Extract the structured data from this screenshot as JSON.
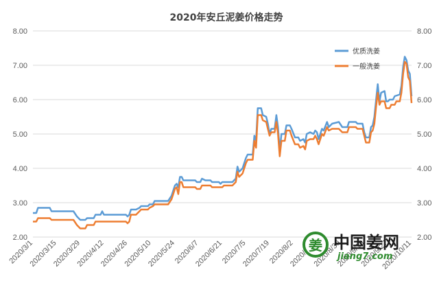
{
  "chart_data": {
    "type": "line",
    "title": "2020年安丘泥姜价格走势",
    "ylim": [
      2.0,
      8.0
    ],
    "yticks": [
      "2.00",
      "3.00",
      "4.00",
      "5.00",
      "6.00",
      "7.00",
      "8.00"
    ],
    "yticks_right": [
      "2.00",
      "3.00",
      "4.00",
      "5.00",
      "6.00",
      "7.00",
      "8.00"
    ],
    "x_tick_labels": [
      "2020/3/1",
      "2020/3/15",
      "2020/3/29",
      "2020/4/12",
      "2020/4/26",
      "2020/5/10",
      "2020/5/24",
      "2020/6/7",
      "2020/6/21",
      "2020/7/5",
      "2020/7/19",
      "2020/8/2",
      "2020/8/16",
      "2020/8/30",
      "2020/9/13",
      "2020/9/27",
      "2020/10/11"
    ],
    "x_tick_days": [
      0,
      14,
      28,
      42,
      56,
      70,
      84,
      98,
      112,
      126,
      140,
      154,
      168,
      182,
      196,
      210,
      224
    ],
    "grid": true,
    "legend_position": "top-right",
    "colors": {
      "series1": "#5b9bd5",
      "series2": "#ed7d31"
    },
    "series": [
      {
        "name": "优质洗姜",
        "points": [
          [
            0,
            2.7
          ],
          [
            2,
            2.7
          ],
          [
            3,
            2.85
          ],
          [
            10,
            2.85
          ],
          [
            11,
            2.75
          ],
          [
            24,
            2.75
          ],
          [
            26,
            2.6
          ],
          [
            28,
            2.5
          ],
          [
            31,
            2.5
          ],
          [
            32,
            2.55
          ],
          [
            36,
            2.55
          ],
          [
            37,
            2.65
          ],
          [
            40,
            2.65
          ],
          [
            41,
            2.75
          ],
          [
            42,
            2.65
          ],
          [
            55,
            2.65
          ],
          [
            56,
            2.6
          ],
          [
            57,
            2.65
          ],
          [
            58,
            2.8
          ],
          [
            61,
            2.8
          ],
          [
            63,
            2.85
          ],
          [
            64,
            2.9
          ],
          [
            68,
            2.9
          ],
          [
            69,
            2.95
          ],
          [
            71,
            2.95
          ],
          [
            72,
            3.05
          ],
          [
            80,
            3.05
          ],
          [
            82,
            3.2
          ],
          [
            84,
            3.5
          ],
          [
            85,
            3.55
          ],
          [
            86,
            3.45
          ],
          [
            87,
            3.75
          ],
          [
            88,
            3.75
          ],
          [
            89,
            3.65
          ],
          [
            96,
            3.65
          ],
          [
            97,
            3.6
          ],
          [
            99,
            3.6
          ],
          [
            100,
            3.7
          ],
          [
            102,
            3.65
          ],
          [
            105,
            3.65
          ],
          [
            106,
            3.6
          ],
          [
            110,
            3.6
          ],
          [
            111,
            3.55
          ],
          [
            112,
            3.6
          ],
          [
            118,
            3.6
          ],
          [
            120,
            3.7
          ],
          [
            121,
            4.05
          ],
          [
            122,
            3.9
          ],
          [
            124,
            4.0
          ],
          [
            126,
            4.3
          ],
          [
            127,
            4.4
          ],
          [
            130,
            4.4
          ],
          [
            131,
            4.95
          ],
          [
            132,
            4.8
          ],
          [
            133,
            5.75
          ],
          [
            135,
            5.75
          ],
          [
            136,
            5.55
          ],
          [
            138,
            5.5
          ],
          [
            139,
            5.3
          ],
          [
            140,
            5.0
          ],
          [
            141,
            5.15
          ],
          [
            143,
            5.15
          ],
          [
            144,
            5.55
          ],
          [
            145,
            5.2
          ],
          [
            146,
            4.5
          ],
          [
            147,
            5.0
          ],
          [
            149,
            5.0
          ],
          [
            150,
            5.25
          ],
          [
            152,
            5.25
          ],
          [
            153,
            5.15
          ],
          [
            155,
            4.9
          ],
          [
            157,
            4.9
          ],
          [
            158,
            4.8
          ],
          [
            160,
            4.85
          ],
          [
            161,
            4.75
          ],
          [
            162,
            5.0
          ],
          [
            164,
            5.05
          ],
          [
            166,
            5.0
          ],
          [
            167,
            5.1
          ],
          [
            168,
            5.05
          ],
          [
            169,
            4.85
          ],
          [
            171,
            5.15
          ],
          [
            172,
            5.1
          ],
          [
            174,
            5.35
          ],
          [
            175,
            5.2
          ],
          [
            177,
            5.3
          ],
          [
            181,
            5.35
          ],
          [
            183,
            5.2
          ],
          [
            186,
            5.2
          ],
          [
            187,
            5.35
          ],
          [
            191,
            5.35
          ],
          [
            192,
            5.3
          ],
          [
            195,
            5.3
          ],
          [
            196,
            5.05
          ],
          [
            197,
            4.9
          ],
          [
            199,
            4.9
          ],
          [
            200,
            5.2
          ],
          [
            201,
            5.25
          ],
          [
            202,
            5.5
          ],
          [
            203,
            6.0
          ],
          [
            204,
            6.45
          ],
          [
            205,
            5.95
          ],
          [
            206,
            6.2
          ],
          [
            208,
            6.25
          ],
          [
            209,
            5.95
          ],
          [
            210,
            5.95
          ],
          [
            211,
            6.0
          ],
          [
            213,
            6.0
          ],
          [
            214,
            6.1
          ],
          [
            217,
            6.15
          ],
          [
            218,
            6.4
          ],
          [
            219,
            6.95
          ],
          [
            220,
            7.25
          ],
          [
            221,
            7.15
          ],
          [
            222,
            6.85
          ],
          [
            223,
            6.75
          ],
          [
            224,
            6.1
          ]
        ]
      },
      {
        "name": "一般洗姜",
        "points": [
          [
            0,
            2.45
          ],
          [
            2,
            2.45
          ],
          [
            3,
            2.55
          ],
          [
            10,
            2.55
          ],
          [
            11,
            2.5
          ],
          [
            24,
            2.5
          ],
          [
            26,
            2.35
          ],
          [
            28,
            2.25
          ],
          [
            31,
            2.25
          ],
          [
            32,
            2.35
          ],
          [
            36,
            2.35
          ],
          [
            37,
            2.45
          ],
          [
            55,
            2.45
          ],
          [
            56,
            2.4
          ],
          [
            57,
            2.45
          ],
          [
            58,
            2.65
          ],
          [
            61,
            2.65
          ],
          [
            63,
            2.75
          ],
          [
            64,
            2.8
          ],
          [
            68,
            2.8
          ],
          [
            69,
            2.85
          ],
          [
            71,
            2.9
          ],
          [
            72,
            2.95
          ],
          [
            80,
            2.95
          ],
          [
            82,
            3.1
          ],
          [
            84,
            3.4
          ],
          [
            85,
            3.45
          ],
          [
            86,
            3.25
          ],
          [
            87,
            3.6
          ],
          [
            88,
            3.6
          ],
          [
            89,
            3.45
          ],
          [
            96,
            3.45
          ],
          [
            97,
            3.4
          ],
          [
            99,
            3.4
          ],
          [
            100,
            3.5
          ],
          [
            105,
            3.5
          ],
          [
            106,
            3.45
          ],
          [
            112,
            3.45
          ],
          [
            113,
            3.5
          ],
          [
            118,
            3.5
          ],
          [
            120,
            3.6
          ],
          [
            121,
            3.9
          ],
          [
            122,
            3.75
          ],
          [
            124,
            3.85
          ],
          [
            126,
            4.15
          ],
          [
            127,
            4.25
          ],
          [
            130,
            4.25
          ],
          [
            131,
            4.8
          ],
          [
            132,
            4.6
          ],
          [
            133,
            5.55
          ],
          [
            135,
            5.55
          ],
          [
            136,
            5.4
          ],
          [
            138,
            5.35
          ],
          [
            139,
            5.15
          ],
          [
            140,
            4.95
          ],
          [
            141,
            5.05
          ],
          [
            143,
            5.05
          ],
          [
            144,
            5.35
          ],
          [
            145,
            5.0
          ],
          [
            146,
            4.35
          ],
          [
            147,
            4.8
          ],
          [
            149,
            4.8
          ],
          [
            150,
            5.1
          ],
          [
            152,
            5.1
          ],
          [
            153,
            4.95
          ],
          [
            155,
            4.7
          ],
          [
            157,
            4.7
          ],
          [
            158,
            4.6
          ],
          [
            160,
            4.65
          ],
          [
            161,
            4.55
          ],
          [
            162,
            4.8
          ],
          [
            164,
            4.85
          ],
          [
            166,
            4.85
          ],
          [
            167,
            4.95
          ],
          [
            168,
            4.85
          ],
          [
            169,
            4.7
          ],
          [
            171,
            5.0
          ],
          [
            172,
            4.95
          ],
          [
            174,
            5.2
          ],
          [
            175,
            5.1
          ],
          [
            177,
            5.15
          ],
          [
            181,
            5.15
          ],
          [
            183,
            5.05
          ],
          [
            186,
            5.05
          ],
          [
            187,
            5.2
          ],
          [
            191,
            5.2
          ],
          [
            192,
            5.15
          ],
          [
            195,
            5.15
          ],
          [
            196,
            4.95
          ],
          [
            197,
            4.75
          ],
          [
            199,
            4.75
          ],
          [
            200,
            5.05
          ],
          [
            201,
            5.1
          ],
          [
            202,
            5.3
          ],
          [
            203,
            5.8
          ],
          [
            204,
            6.2
          ],
          [
            205,
            5.85
          ],
          [
            206,
            5.95
          ],
          [
            208,
            5.95
          ],
          [
            209,
            5.75
          ],
          [
            211,
            5.75
          ],
          [
            212,
            5.85
          ],
          [
            214,
            5.85
          ],
          [
            215,
            5.95
          ],
          [
            217,
            5.95
          ],
          [
            218,
            6.2
          ],
          [
            219,
            6.75
          ],
          [
            220,
            7.1
          ],
          [
            221,
            7.05
          ],
          [
            222,
            6.65
          ],
          [
            223,
            6.55
          ],
          [
            224,
            5.9
          ]
        ]
      }
    ]
  },
  "watermark": {
    "cn_text": "中国姜网",
    "en_text": "jiang7.com",
    "logo_char": "姜",
    "logo_color": "#2e8b2e"
  }
}
